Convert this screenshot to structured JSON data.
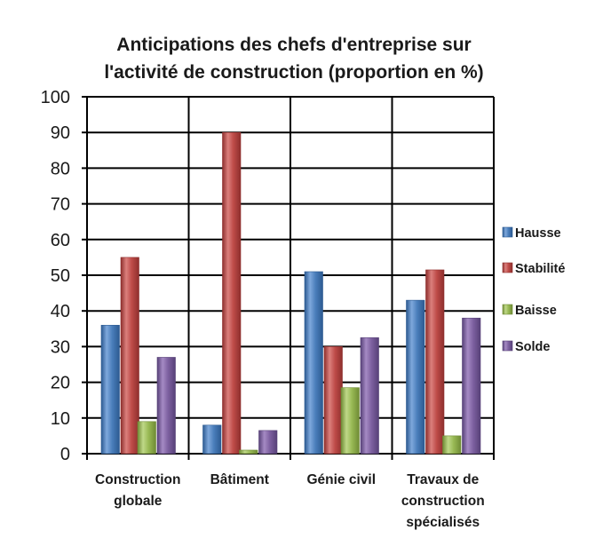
{
  "chart_data": {
    "type": "bar",
    "title_lines": [
      "Anticipations  des chefs d'entreprise sur",
      "l'activité  de construction (proportion en %)"
    ],
    "categories": [
      [
        "Construction",
        "globale"
      ],
      [
        "Bâtiment"
      ],
      [
        "Génie civil"
      ],
      [
        "Travaux de",
        "construction",
        "spécialisés"
      ]
    ],
    "series": [
      {
        "name": "Hausse",
        "values": [
          36,
          8,
          51,
          43
        ],
        "color": "#4a7ebb",
        "light": "#7ea8dc",
        "dark": "#2c5a91"
      },
      {
        "name": "Stabilité",
        "values": [
          55,
          90,
          30,
          51.5
        ],
        "color": "#be4b48",
        "light": "#db7f7c",
        "dark": "#8e2f2d"
      },
      {
        "name": "Baisse",
        "values": [
          9,
          1,
          18.5,
          5
        ],
        "color": "#98b954",
        "light": "#bfd888",
        "dark": "#6f8b35"
      },
      {
        "name": "Solde",
        "values": [
          27,
          6.5,
          32.5,
          38
        ],
        "color": "#7d60a0",
        "light": "#a58ac4",
        "dark": "#574178"
      }
    ],
    "yticks": [
      "0",
      "10",
      "20",
      "30",
      "40",
      "50",
      "60",
      "70",
      "80",
      "90",
      "100"
    ],
    "ylim": [
      0,
      100
    ],
    "grid": true,
    "legend_position": "right"
  }
}
